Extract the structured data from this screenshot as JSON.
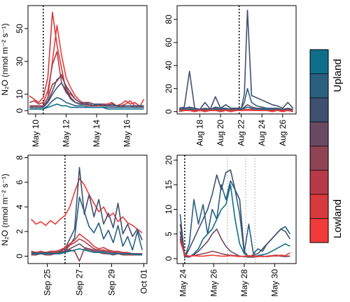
{
  "figure": {
    "y_axis_label": "N₂O (nmol m⁻² s⁻¹)",
    "legend": {
      "top_label": "Upland",
      "bottom_label": "Lowland",
      "colors": [
        "#0f6e8a",
        "#2a5f80",
        "#3f5070",
        "#6a4a63",
        "#8e4455",
        "#b63a47",
        "#d6393e",
        "#f13a39"
      ]
    }
  },
  "chart_data": [
    {
      "type": "line",
      "panel": "top-left",
      "xlim": [
        9.5,
        17.3
      ],
      "ylim": [
        -2,
        64
      ],
      "x_ticks": [
        10,
        12,
        14,
        16
      ],
      "x_tick_labels": [
        "May 10",
        "May 12",
        "May 14",
        "May 16"
      ],
      "y_ticks": [
        0,
        10,
        30,
        50
      ],
      "y_tick_labels": [
        "0",
        "10",
        "30",
        "50"
      ],
      "event_lines": [
        {
          "x": 10.5,
          "style": "dotted-black"
        }
      ],
      "x": [
        9.6,
        9.9,
        10.2,
        10.5,
        10.8,
        11.1,
        11.4,
        11.7,
        12.0,
        12.3,
        12.6,
        12.9,
        13.2,
        13.5,
        13.8,
        14.1,
        14.4,
        14.7,
        15.0,
        15.3,
        15.6,
        15.9,
        16.2,
        16.5,
        16.8,
        17.1
      ],
      "series": [
        {
          "color": "#f13a39",
          "values": [
            2,
            3,
            2,
            3,
            8,
            30,
            52,
            34,
            20,
            14,
            9,
            6,
            4,
            3,
            3,
            4,
            3,
            4,
            3,
            3,
            3,
            4,
            6,
            3,
            2,
            7
          ]
        },
        {
          "color": "#d6393e",
          "values": [
            9,
            7,
            5,
            8,
            20,
            60,
            40,
            26,
            12,
            10,
            7,
            5,
            4,
            5,
            4,
            3,
            4,
            4,
            5,
            3,
            4,
            6,
            4,
            5,
            3,
            2
          ]
        },
        {
          "color": "#b63a47",
          "values": [
            5,
            6,
            4,
            5,
            12,
            28,
            36,
            17,
            11,
            8,
            5,
            4,
            4,
            3,
            3,
            3,
            3,
            3,
            3,
            3,
            2,
            3,
            3,
            2,
            2,
            2
          ]
        },
        {
          "color": "#8e4455",
          "values": [
            3,
            3,
            3,
            3,
            8,
            16,
            18,
            22,
            14,
            8,
            5,
            4,
            4,
            4,
            3,
            4,
            3,
            3,
            3,
            3,
            3,
            3,
            3,
            3,
            3,
            3
          ]
        },
        {
          "color": "#6a4a63",
          "values": [
            2,
            2,
            2,
            2,
            6,
            12,
            19,
            21,
            15,
            11,
            7,
            5,
            5,
            5,
            4,
            4,
            4,
            3,
            3,
            3,
            3,
            3,
            3,
            3,
            3,
            3
          ]
        },
        {
          "color": "#3f5070",
          "values": [
            2,
            2,
            2,
            2,
            5,
            10,
            14,
            17,
            12,
            7,
            5,
            4,
            4,
            4,
            3,
            4,
            3,
            3,
            4,
            3,
            3,
            3,
            3,
            3,
            3,
            3
          ]
        },
        {
          "color": "#2a5f80",
          "values": [
            1,
            1,
            1,
            1,
            3,
            6,
            8,
            7,
            5,
            4,
            3,
            3,
            3,
            2,
            2,
            2,
            2,
            2,
            2,
            2,
            2,
            2,
            2,
            2,
            2,
            2
          ]
        },
        {
          "color": "#0f6e8a",
          "values": [
            1,
            1,
            1,
            1,
            2,
            3,
            4,
            3,
            3,
            2,
            2,
            2,
            2,
            2,
            2,
            2,
            2,
            1,
            1,
            1,
            1,
            1,
            1,
            1,
            1,
            1
          ]
        }
      ]
    },
    {
      "type": "line",
      "panel": "top-right",
      "xlim": [
        15.8,
        27.3
      ],
      "ylim": [
        -2,
        92
      ],
      "x_ticks": [
        18,
        20,
        22,
        24,
        26
      ],
      "x_tick_labels": [
        "Aug 18",
        "Aug 20",
        "Aug 22",
        "Aug 24",
        "Aug 26"
      ],
      "y_ticks": [
        0,
        20,
        40,
        60,
        80
      ],
      "y_tick_labels": [
        "0",
        "20",
        "40",
        "60",
        "80"
      ],
      "event_lines": [
        {
          "x": 21.8,
          "style": "dotted-black"
        }
      ],
      "x": [
        16.0,
        16.5,
        17.0,
        17.5,
        18.0,
        18.5,
        19.0,
        19.5,
        20.0,
        20.5,
        21.0,
        21.5,
        22.0,
        22.3,
        22.6,
        23.0,
        23.5,
        24.0,
        24.5,
        25.0,
        25.5,
        26.0,
        26.5,
        27.0
      ],
      "series": [
        {
          "color": "#3f5070",
          "values": [
            3,
            4,
            35,
            3,
            2,
            8,
            2,
            13,
            3,
            6,
            3,
            3,
            3,
            15,
            88,
            14,
            12,
            10,
            8,
            6,
            5,
            3,
            8,
            3
          ]
        },
        {
          "color": "#2a5f80",
          "values": [
            2,
            3,
            4,
            3,
            2,
            3,
            2,
            4,
            3,
            3,
            2,
            2,
            3,
            8,
            20,
            8,
            5,
            4,
            3,
            3,
            3,
            2,
            3,
            2
          ]
        },
        {
          "color": "#6a4a63",
          "values": [
            2,
            2,
            3,
            2,
            2,
            2,
            2,
            3,
            2,
            2,
            2,
            2,
            2,
            4,
            6,
            4,
            3,
            3,
            2,
            2,
            2,
            2,
            2,
            2
          ]
        },
        {
          "color": "#0f6e8a",
          "values": [
            1,
            1,
            2,
            1,
            1,
            1,
            1,
            2,
            1,
            1,
            1,
            1,
            2,
            3,
            4,
            3,
            2,
            2,
            2,
            1,
            1,
            1,
            1,
            1
          ]
        },
        {
          "color": "#b63a47",
          "values": [
            1,
            1,
            1,
            1,
            1,
            1,
            1,
            1,
            1,
            1,
            1,
            1,
            1,
            2,
            2,
            2,
            1,
            1,
            1,
            1,
            1,
            1,
            1,
            1
          ]
        },
        {
          "color": "#f13a39",
          "values": [
            0,
            1,
            1,
            0,
            1,
            0,
            1,
            1,
            0,
            1,
            0,
            1,
            1,
            1,
            1,
            1,
            1,
            1,
            1,
            0,
            1,
            0,
            1,
            0
          ]
        }
      ]
    },
    {
      "type": "line",
      "panel": "bottom-left",
      "xlim": [
        23.8,
        31.2
      ],
      "ylim": [
        -0.6,
        8.2
      ],
      "x_ticks": [
        25,
        27,
        29,
        31
      ],
      "x_tick_labels": [
        "Sep 25",
        "Sep 27",
        "Sep 29",
        "Oct 01"
      ],
      "y_ticks": [
        0,
        2,
        4,
        6,
        8
      ],
      "y_tick_labels": [
        "0",
        "2",
        "4",
        "6",
        "8"
      ],
      "event_lines": [
        {
          "x": 26.1,
          "style": "dotted-black"
        }
      ],
      "x": [
        24.0,
        24.3,
        24.6,
        24.9,
        25.2,
        25.5,
        25.8,
        26.1,
        26.4,
        26.7,
        27.0,
        27.3,
        27.6,
        27.9,
        28.2,
        28.5,
        28.8,
        29.1,
        29.4,
        29.7,
        30.0,
        30.3,
        30.6,
        30.9
      ],
      "series": [
        {
          "color": "#f13a39",
          "values": [
            3.0,
            2.6,
            2.8,
            2.5,
            2.9,
            2.6,
            3.0,
            3.3,
            4.0,
            5.2,
            6.3,
            5.8,
            5.0,
            4.3,
            3.6,
            4.0,
            3.2,
            3.5,
            2.8,
            3.2,
            2.7,
            2.5,
            2.2,
            1.9
          ]
        },
        {
          "color": "#3f5070",
          "values": [
            0.3,
            0.2,
            0.3,
            0.2,
            0.3,
            0.3,
            0.4,
            0.6,
            1.4,
            2.2,
            7.2,
            3.4,
            5.0,
            3.2,
            4.6,
            2.6,
            3.5,
            2.3,
            4.3,
            1.8,
            2.6,
            1.6,
            2.2,
            1.3
          ]
        },
        {
          "color": "#2a5f80",
          "values": [
            0.2,
            0.2,
            0.3,
            0.2,
            0.2,
            0.3,
            0.3,
            0.4,
            0.9,
            1.5,
            4.8,
            3.6,
            2.4,
            1.9,
            2.7,
            1.4,
            2.1,
            1.1,
            2.5,
            0.8,
            1.6,
            0.5,
            2.0,
            0.5
          ]
        },
        {
          "color": "#d6393e",
          "values": [
            0.4,
            0.3,
            0.4,
            0.3,
            0.4,
            0.4,
            0.5,
            0.7,
            1.0,
            1.3,
            1.8,
            1.5,
            1.2,
            0.8,
            0.6,
            0.7,
            0.5,
            0.4,
            0.4,
            0.3,
            0.3,
            0.2,
            0.2,
            0.2
          ]
        },
        {
          "color": "#b63a47",
          "values": [
            0.2,
            0.3,
            0.2,
            0.3,
            0.2,
            0.3,
            0.3,
            0.6,
            0.9,
            1.1,
            1.4,
            1.2,
            0.9,
            0.6,
            0.5,
            0.5,
            0.4,
            0.3,
            0.3,
            0.3,
            0.2,
            0.2,
            0.1,
            0.1
          ]
        },
        {
          "color": "#8e4455",
          "values": [
            0.1,
            0.1,
            0.2,
            0.1,
            0.1,
            0.2,
            0.2,
            0.3,
            0.5,
            0.4,
            -0.4,
            0.6,
            0.5,
            0.4,
            0.3,
            0.2,
            0.2,
            0.1,
            0.2,
            0.1,
            0.1,
            0.1,
            0.1,
            0.1
          ]
        },
        {
          "color": "#6a4a63",
          "values": [
            0.3,
            0.3,
            0.2,
            0.3,
            0.3,
            0.2,
            0.3,
            0.4,
            0.6,
            0.8,
            1.0,
            0.7,
            0.6,
            0.5,
            0.4,
            0.4,
            0.3,
            0.3,
            0.2,
            0.2,
            0.2,
            0.2,
            0.2,
            0.2
          ]
        },
        {
          "color": "#0f6e8a",
          "values": [
            0.2,
            0.2,
            0.2,
            0.2,
            0.2,
            0.2,
            0.2,
            0.3,
            0.4,
            0.5,
            0.6,
            0.5,
            0.4,
            0.3,
            0.3,
            0.3,
            0.2,
            0.2,
            0.2,
            0.2,
            0.2,
            0.2,
            0.1,
            0.1
          ]
        }
      ]
    },
    {
      "type": "line",
      "panel": "bottom-right",
      "xlim": [
        23.6,
        31.4
      ],
      "ylim": [
        -1,
        21
      ],
      "x_ticks": [
        24,
        26,
        28,
        30
      ],
      "x_tick_labels": [
        "May 24",
        "May 26",
        "May 28",
        "May 30"
      ],
      "y_ticks": [
        0,
        5,
        10,
        15,
        20
      ],
      "y_tick_labels": [
        "0",
        "5",
        "10",
        "15",
        "20"
      ],
      "event_lines": [
        {
          "x": 24.1,
          "style": "dotted-black"
        },
        {
          "x": 26.9,
          "style": "dotted-gray"
        },
        {
          "x": 28.1,
          "style": "dotted-gray"
        },
        {
          "x": 28.7,
          "style": "dotted-gray"
        }
      ],
      "x": [
        23.8,
        24.1,
        24.4,
        24.7,
        25.0,
        25.3,
        25.6,
        25.9,
        26.2,
        26.5,
        26.8,
        27.1,
        27.4,
        27.7,
        28.0,
        28.3,
        28.6,
        28.9,
        29.2,
        29.5,
        29.8,
        30.1,
        30.4,
        30.7,
        31.0
      ],
      "series": [
        {
          "color": "#2a5f80",
          "values": [
            9.0,
            0.3,
            3.0,
            12.0,
            7.0,
            11.0,
            5.0,
            10.0,
            8.0,
            15.0,
            12.0,
            15.8,
            14.0,
            9.0,
            1.2,
            7.0,
            1.0,
            2.0,
            1.5,
            3.0,
            4.0,
            5.0,
            6.0,
            6.5,
            5.0
          ]
        },
        {
          "color": "#3f5070",
          "values": [
            5.5,
            0.2,
            2.0,
            4.0,
            6.0,
            8.0,
            10.0,
            13.0,
            17.0,
            14.0,
            17.5,
            18.0,
            14.0,
            12.0,
            1.5,
            0.3,
            0.8,
            1.0,
            2.0,
            3.0,
            4.0,
            5.0,
            6.0,
            5.5,
            4.0
          ]
        },
        {
          "color": "#0f6e8a",
          "values": [
            4.0,
            0.5,
            0.3,
            1.0,
            2.0,
            4.0,
            5.0,
            6.0,
            8.0,
            10.0,
            11.0,
            15.0,
            8.0,
            3.0,
            1.0,
            0.5,
            0.4,
            0.6,
            0.8,
            1.0,
            1.5,
            2.0,
            2.5,
            3.0,
            2.5
          ]
        },
        {
          "color": "#6a4a63",
          "values": [
            7.0,
            0.4,
            0.3,
            0.8,
            1.5,
            2.5,
            3.5,
            5.0,
            6.0,
            4.0,
            2.5,
            1.5,
            1.0,
            0.5,
            0.4,
            0.3,
            0.3,
            0.4,
            0.5,
            0.4,
            0.5,
            0.6,
            0.5,
            0.4,
            0.5
          ]
        },
        {
          "color": "#8e4455",
          "values": [
            4.5,
            0.6,
            0.4,
            0.6,
            0.8,
            1.0,
            1.2,
            1.5,
            1.3,
            1.0,
            0.8,
            0.7,
            0.6,
            0.5,
            0.4,
            0.5,
            0.6,
            0.5,
            0.4,
            0.5,
            0.6,
            0.7,
            0.6,
            0.5,
            0.5
          ]
        },
        {
          "color": "#f13a39",
          "values": [
            3.5,
            0.8,
            0.5,
            0.6,
            0.5,
            0.5,
            0.6,
            0.7,
            0.6,
            0.5,
            0.5,
            0.6,
            0.5,
            0.4,
            0.5,
            0.6,
            0.5,
            0.4,
            0.5,
            0.4,
            0.6,
            0.5,
            0.7,
            0.6,
            1.2
          ]
        }
      ]
    }
  ]
}
